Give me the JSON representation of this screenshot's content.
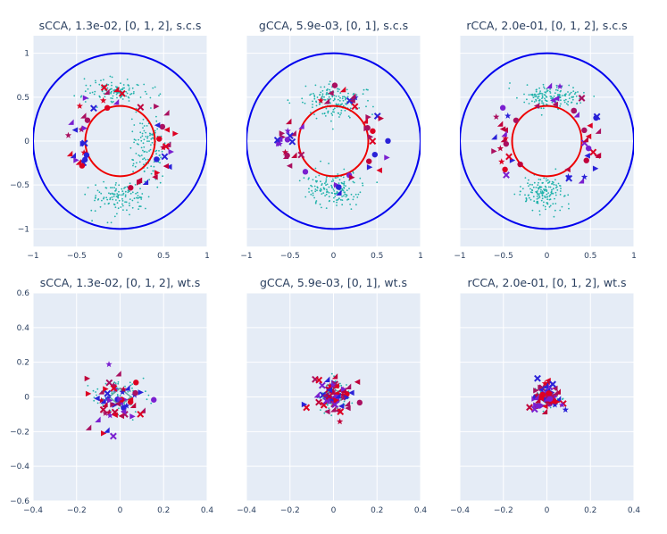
{
  "chart_data": [
    {
      "type": "scatter",
      "title": "sCCA, 1.3e-02, [0, 1, 2], s.c.s",
      "xlim": [
        -1,
        1
      ],
      "ylim": [
        -1.2,
        1.2
      ],
      "xticks": [
        -1,
        -0.5,
        0,
        0.5,
        1
      ],
      "xtick_labels": [
        "−1",
        "−0.5",
        "0",
        "0.5",
        "1"
      ],
      "yticks": [
        -1,
        -0.5,
        0,
        0.5,
        1
      ],
      "ytick_labels": [
        "−1",
        "−0.5",
        "0",
        "0.5",
        "1"
      ],
      "circles": [
        {
          "r": 1.0,
          "color": "#0000ee"
        },
        {
          "r": 0.4,
          "color": "#ee0000"
        }
      ],
      "point_clouds": [
        {
          "color": "#20b2aa",
          "clusters": [
            {
              "cx": -0.05,
              "cy": 0.58,
              "sx": 0.18,
              "sy": 0.07
            },
            {
              "cx": 0.0,
              "cy": -0.65,
              "sx": 0.17,
              "sy": 0.09
            },
            {
              "cx": 0.3,
              "cy": -0.1,
              "sx": 0.1,
              "sy": 0.2
            }
          ],
          "count": 360
        }
      ],
      "marker_ring": {
        "rmin": 0.4,
        "rmax": 0.65,
        "angles_deg": [
          150,
          170,
          190,
          210,
          20,
          0,
          -20,
          110,
          70,
          -60
        ]
      }
    },
    {
      "type": "scatter",
      "title": "gCCA, 5.9e-03, [0, 1], s.c.s",
      "xlim": [
        -1,
        1
      ],
      "ylim": [
        -1.2,
        1.2
      ],
      "xticks": [
        -1,
        -0.5,
        0,
        0.5,
        1
      ],
      "xtick_labels": [
        "−1",
        "−0.5",
        "0",
        "0.5",
        "1"
      ],
      "yticks": [],
      "ytick_labels": [],
      "circles": [
        {
          "r": 1.0,
          "color": "#0000ee"
        },
        {
          "r": 0.4,
          "color": "#ee0000"
        }
      ],
      "point_clouds": [
        {
          "color": "#20b2aa",
          "clusters": [
            {
              "cx": 0.02,
              "cy": 0.45,
              "sx": 0.17,
              "sy": 0.09
            },
            {
              "cx": 0.0,
              "cy": -0.55,
              "sx": 0.17,
              "sy": 0.1
            }
          ],
          "count": 340
        }
      ],
      "marker_ring": {
        "rmin": 0.4,
        "rmax": 0.65,
        "angles_deg": [
          160,
          175,
          190,
          200,
          10,
          25,
          -15,
          90,
          60,
          -70
        ]
      }
    },
    {
      "type": "scatter",
      "title": "rCCA, 2.0e-01, [0, 1, 2], s.c.s",
      "xlim": [
        -1,
        1
      ],
      "ylim": [
        -1.2,
        1.2
      ],
      "xticks": [
        -1,
        -0.5,
        0,
        0.5,
        1
      ],
      "xtick_labels": [
        "−1",
        "−0.5",
        "0",
        "0.5",
        "1"
      ],
      "yticks": [],
      "ytick_labels": [],
      "circles": [
        {
          "r": 1.0,
          "color": "#0000ee"
        },
        {
          "r": 0.4,
          "color": "#ee0000"
        }
      ],
      "point_clouds": [
        {
          "color": "#20b2aa",
          "clusters": [
            {
              "cx": 0.05,
              "cy": 0.5,
              "sx": 0.17,
              "sy": 0.07
            },
            {
              "cx": -0.02,
              "cy": -0.6,
              "sx": 0.13,
              "sy": 0.09
            }
          ],
          "count": 320
        }
      ],
      "marker_ring": {
        "rmin": 0.4,
        "rmax": 0.65,
        "angles_deg": [
          150,
          170,
          190,
          210,
          15,
          0,
          -20,
          95,
          60,
          -45
        ]
      }
    },
    {
      "type": "scatter",
      "title": "sCCA, 1.3e-02, [0, 1, 2], wt.s",
      "xlim": [
        -0.4,
        0.4
      ],
      "ylim": [
        -0.6,
        0.6
      ],
      "xticks": [
        -0.4,
        -0.2,
        0,
        0.2,
        0.4
      ],
      "xtick_labels": [
        "−0.4",
        "−0.2",
        "0",
        "0.2",
        "0.4"
      ],
      "yticks": [
        -0.6,
        -0.4,
        -0.2,
        0,
        0.2,
        0.4,
        0.6
      ],
      "ytick_labels": [
        "−0.6",
        "−0.4",
        "−0.2",
        "0",
        "0.2",
        "0.4",
        "0.6"
      ],
      "circles": [],
      "point_clouds": [
        {
          "color": "#20b2aa",
          "clusters": [
            {
              "cx": 0.0,
              "cy": 0.0,
              "sx": 0.06,
              "sy": 0.05
            }
          ],
          "count": 80
        }
      ],
      "markers_spread": {
        "sx": 0.07,
        "sy": 0.1,
        "count": 55
      },
      "diamond": {
        "half": 0.05
      }
    },
    {
      "type": "scatter",
      "title": "gCCA, 5.9e-03, [0, 1], wt.s",
      "xlim": [
        -0.4,
        0.4
      ],
      "ylim": [
        -0.6,
        0.6
      ],
      "xticks": [
        -0.4,
        -0.2,
        0,
        0.2,
        0.4
      ],
      "xtick_labels": [
        "−0.4",
        "−0.2",
        "0",
        "0.2",
        "0.4"
      ],
      "yticks": [],
      "ytick_labels": [],
      "circles": [],
      "point_clouds": [
        {
          "color": "#20b2aa",
          "clusters": [
            {
              "cx": 0.0,
              "cy": 0.0,
              "sx": 0.04,
              "sy": 0.04
            }
          ],
          "count": 80
        }
      ],
      "markers_spread": {
        "sx": 0.045,
        "sy": 0.045,
        "count": 60
      },
      "diamond": {
        "half": 0.05
      }
    },
    {
      "type": "scatter",
      "title": "rCCA, 2.0e-01, [0, 1, 2], wt.s",
      "xlim": [
        -0.4,
        0.4
      ],
      "ylim": [
        -0.6,
        0.6
      ],
      "xticks": [
        -0.4,
        -0.2,
        0,
        0.2,
        0.4
      ],
      "xtick_labels": [
        "−0.4",
        "−0.2",
        "0",
        "0.2",
        "0.4"
      ],
      "yticks": [],
      "ytick_labels": [],
      "circles": [],
      "point_clouds": [
        {
          "color": "#20b2aa",
          "clusters": [
            {
              "cx": 0.0,
              "cy": 0.0,
              "sx": 0.03,
              "sy": 0.03
            }
          ],
          "count": 80
        }
      ],
      "markers_spread": {
        "sx": 0.035,
        "sy": 0.04,
        "count": 60
      },
      "diamond": {
        "half": 0.04
      }
    }
  ],
  "colors": {
    "background": "#ffffff",
    "plot_bg": "#e5ecf6",
    "grid": "#ffffff",
    "text": "#2a3f5f",
    "marker_palette": [
      "#dd0022",
      "#c0003a",
      "#7a1fd0",
      "#2a22d8",
      "#aa1060"
    ]
  }
}
